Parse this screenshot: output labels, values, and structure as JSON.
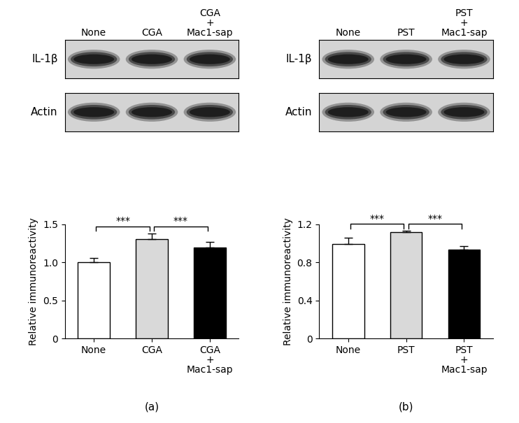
{
  "chart_data": [
    {
      "type": "bar",
      "panel_label": "(a)",
      "blot": {
        "lanes": [
          "None",
          "CGA",
          "CGA\n+\nMac1-sap"
        ],
        "rows": [
          "IL-1β",
          "Actin"
        ]
      },
      "categories": [
        "None",
        "CGA",
        "CGA\n+\nMac1-sap"
      ],
      "values": [
        1.0,
        1.3,
        1.19
      ],
      "errors": [
        0.06,
        0.08,
        0.08
      ],
      "colors": [
        "#ffffff",
        "#d9d9d9",
        "#000000"
      ],
      "y_label": "Relative immunoreactivity",
      "ylim": [
        0,
        1.5
      ],
      "yticks": [
        0,
        0.5,
        {
          "value": 1,
          "label": "1.0"
        },
        1.5
      ],
      "significance": [
        {
          "pair": [
            0,
            1
          ],
          "label": "***"
        },
        {
          "pair": [
            1,
            2
          ],
          "label": "***"
        }
      ]
    },
    {
      "type": "bar",
      "panel_label": "(b)",
      "blot": {
        "lanes": [
          "None",
          "PST",
          "PST\n+\nMac1-sap"
        ],
        "rows": [
          "IL-1β",
          "Actin"
        ]
      },
      "categories": [
        "None",
        "PST",
        "PST\n+\nMac1-sap"
      ],
      "values": [
        0.99,
        1.12,
        0.93
      ],
      "errors": [
        0.07,
        0.01,
        0.04
      ],
      "colors": [
        "#ffffff",
        "#d9d9d9",
        "#000000"
      ],
      "y_label": "Relative immunoreactivity",
      "ylim": [
        0,
        1.2
      ],
      "yticks": [
        0,
        0.4,
        0.8,
        1.2
      ],
      "significance": [
        {
          "pair": [
            0,
            1
          ],
          "label": "***"
        },
        {
          "pair": [
            1,
            2
          ],
          "label": "***"
        }
      ]
    }
  ]
}
